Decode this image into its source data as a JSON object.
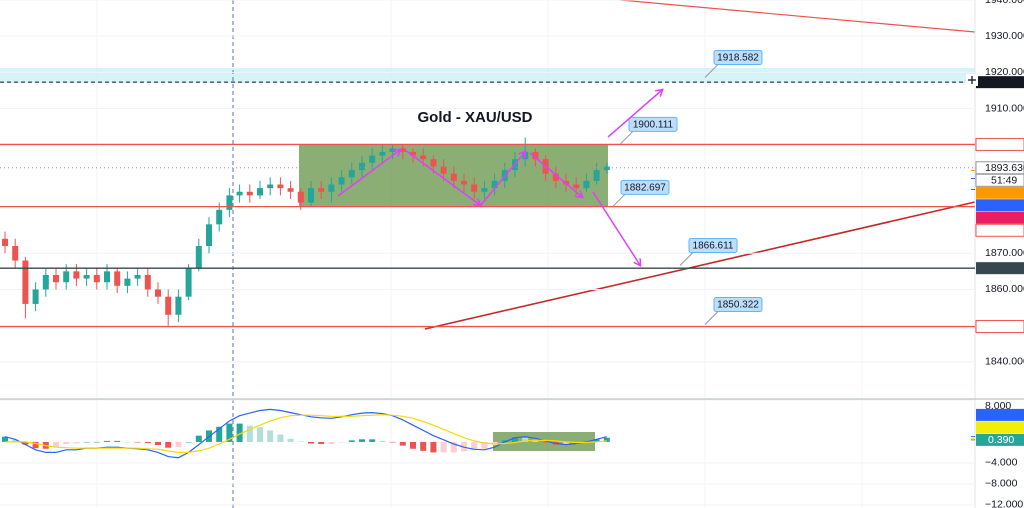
{
  "chart_data": [
    {
      "type": "candlestick",
      "title": "Gold - XAU/USD",
      "ylim": [
        1830,
        1940
      ],
      "yticks": [
        {
          "value": 1940,
          "label": "1940.000"
        },
        {
          "value": 1930,
          "label": "1930.000"
        },
        {
          "value": 1920,
          "label": "1920.000"
        },
        {
          "value": 1910,
          "label": "1910.000"
        },
        {
          "value": 1870,
          "label": "1870.000"
        },
        {
          "value": 1860,
          "label": "1860.000"
        },
        {
          "value": 1840,
          "label": "1840.000"
        }
      ],
      "grid": true,
      "up_color": "#26a69a",
      "down_color": "#ef5350",
      "open": [
        1874,
        1872,
        1868,
        1856,
        1860,
        1864,
        1862,
        1865,
        1863,
        1864,
        1862,
        1865,
        1861,
        1863,
        1864,
        1860,
        1858,
        1853,
        1858,
        1866,
        1872,
        1878,
        1882,
        1886,
        1887,
        1886,
        1888,
        1889,
        1888,
        1887,
        1884,
        1888,
        1887,
        1889,
        1891,
        1893,
        1895,
        1897,
        1898,
        1899,
        1898,
        1897,
        1896,
        1894,
        1892,
        1890,
        1889,
        1887,
        1888,
        1890,
        1893,
        1896,
        1898,
        1896,
        1892,
        1890,
        1889,
        1888,
        1890,
        1893
      ],
      "high": [
        1876,
        1874,
        1869,
        1862,
        1866,
        1866,
        1867,
        1867,
        1866,
        1866,
        1867,
        1866,
        1865,
        1866,
        1866,
        1862,
        1860,
        1860,
        1867,
        1874,
        1880,
        1884,
        1888,
        1889,
        1889,
        1890,
        1891,
        1891,
        1890,
        1888,
        1890,
        1890,
        1891,
        1893,
        1895,
        1897,
        1899,
        1900,
        1900,
        1900,
        1899,
        1899,
        1897,
        1896,
        1894,
        1892,
        1891,
        1890,
        1892,
        1895,
        1898,
        1902,
        1899,
        1897,
        1894,
        1892,
        1891,
        1892,
        1895,
        1895
      ],
      "low": [
        1870,
        1866,
        1852,
        1854,
        1858,
        1860,
        1860,
        1861,
        1861,
        1860,
        1860,
        1859,
        1859,
        1861,
        1858,
        1856,
        1850,
        1851,
        1857,
        1865,
        1870,
        1876,
        1880,
        1884,
        1884,
        1885,
        1886,
        1886,
        1885,
        1882,
        1883,
        1885,
        1884,
        1887,
        1889,
        1891,
        1893,
        1895,
        1896,
        1896,
        1895,
        1894,
        1892,
        1890,
        1888,
        1887,
        1885,
        1885,
        1886,
        1888,
        1891,
        1894,
        1894,
        1890,
        1888,
        1887,
        1886,
        1887,
        1889,
        1892
      ],
      "close": [
        1872,
        1868,
        1856,
        1860,
        1864,
        1862,
        1865,
        1863,
        1864,
        1862,
        1865,
        1861,
        1863,
        1864,
        1860,
        1858,
        1853,
        1858,
        1866,
        1872,
        1878,
        1882,
        1886,
        1887,
        1886,
        1888,
        1889,
        1888,
        1887,
        1884,
        1888,
        1887,
        1889,
        1891,
        1893,
        1895,
        1897,
        1898,
        1899,
        1898,
        1897,
        1896,
        1894,
        1892,
        1890,
        1889,
        1887,
        1888,
        1890,
        1893,
        1896,
        1898,
        1896,
        1892,
        1890,
        1889,
        1888,
        1890,
        1893,
        1894
      ],
      "price_tags": [
        {
          "value": 1917.293,
          "color": "#131722",
          "fill": true,
          "style": "dashed"
        },
        {
          "value": 1900.079,
          "color": "#ef5350",
          "fill": false,
          "style": "line"
        },
        {
          "value": 1893.63,
          "label": "1893.630",
          "color": "#9598a1",
          "fill": false,
          "style": "dotted"
        },
        {
          "value": 1892.867,
          "color": "#ff9800",
          "fill": true,
          "style": "marker"
        },
        {
          "value": 1890.665,
          "color": "#2962ff",
          "fill": true,
          "style": "marker"
        },
        {
          "value": 1887.633,
          "color": "#e91e63",
          "fill": true,
          "style": "marker"
        },
        {
          "value": 1882.895,
          "color": "#ef5350",
          "fill": false,
          "style": "line"
        },
        {
          "value": 1865.883,
          "color": "#37474f",
          "fill": true,
          "style": "line"
        },
        {
          "value": 1849.748,
          "color": "#ef5350",
          "fill": false,
          "style": "line"
        }
      ],
      "countdown": "51:49",
      "callouts": [
        1918.582,
        1900.111,
        1882.697,
        1866.611,
        1850.322
      ]
    },
    {
      "type": "macd",
      "ylim": [
        -12.6,
        8
      ],
      "yticks": [
        {
          "value": 8,
          "label": "8.000"
        },
        {
          "value": -4,
          "label": "−4.000"
        },
        {
          "value": -8,
          "label": "−8.000"
        },
        {
          "value": -12,
          "label": "−12.000"
        }
      ],
      "histogram": [
        1,
        0.5,
        -0.5,
        -1.2,
        -1.3,
        -1,
        -0.4,
        -0.3,
        0,
        0,
        0.2,
        0.2,
        0,
        -0.1,
        -0.2,
        -0.6,
        -1.1,
        -1,
        0,
        1.2,
        2.2,
        2.9,
        3.5,
        3.5,
        3.1,
        2.8,
        2.2,
        1.4,
        0.6,
        0.1,
        -0.3,
        -0.4,
        -0.4,
        -0.1,
        0.3,
        0.5,
        0.5,
        0.2,
        -0.1,
        -0.7,
        -1.3,
        -1.7,
        -2,
        -2,
        -2,
        -1.8,
        -1.6,
        -1.3,
        -0.6,
        0.3,
        0.9,
        0.8,
        0.4,
        -0.1,
        -0.5,
        -0.5,
        -0.2,
        0.1,
        0.5,
        0.8
      ],
      "series": [
        {
          "color": "#2962ff",
          "values": [
            1,
            0.5,
            -0.5,
            -1.5,
            -2,
            -2,
            -1.5,
            -1.5,
            -1.2,
            -1.2,
            -1,
            -1,
            -1.2,
            -1.3,
            -1.5,
            -2,
            -2.8,
            -3,
            -2,
            -0.5,
            1,
            2.5,
            4,
            5,
            5.5,
            6,
            6.2,
            6,
            5.6,
            5.2,
            4.8,
            4.6,
            4.5,
            4.8,
            5.2,
            5.5,
            5.6,
            5.4,
            5,
            4.2,
            3.2,
            2.2,
            1.2,
            0.4,
            -0.4,
            -1,
            -1.4,
            -1.5,
            -1,
            0,
            0.8,
            1,
            0.7,
            0.2,
            -0.3,
            -0.5,
            -0.3,
            0,
            0.5,
            1
          ]
        },
        {
          "color": "#f5d90a",
          "values": [
            0,
            0,
            0,
            -0.3,
            -0.7,
            -1,
            -1.1,
            -1.2,
            -1.2,
            -1.2,
            -1.2,
            -1.2,
            -1.2,
            -1.2,
            -1.3,
            -1.4,
            -1.7,
            -2,
            -2,
            -1.7,
            -1.2,
            -0.4,
            0.5,
            1.5,
            2.4,
            3.2,
            4,
            4.6,
            5,
            5.1,
            5.1,
            5,
            4.9,
            4.9,
            4.9,
            5,
            5.1,
            5.2,
            5.1,
            4.9,
            4.5,
            3.9,
            3.2,
            2.4,
            1.6,
            0.8,
            0.2,
            -0.2,
            -0.4,
            -0.3,
            -0.1,
            0.2,
            0.3,
            0.3,
            0.2,
            0,
            -0.1,
            -0.1,
            0,
            0.2
          ]
        }
      ],
      "value_tags": [
        {
          "value": 1.012,
          "color": "#2962ff",
          "text_color": "#ffffff"
        },
        {
          "value": 0.622,
          "color": "#f5ec0a",
          "text_color": "#131722"
        },
        {
          "value": 0.39,
          "label": "0.390",
          "color": "#26a69a",
          "text_color": "#ffffff"
        }
      ]
    }
  ]
}
